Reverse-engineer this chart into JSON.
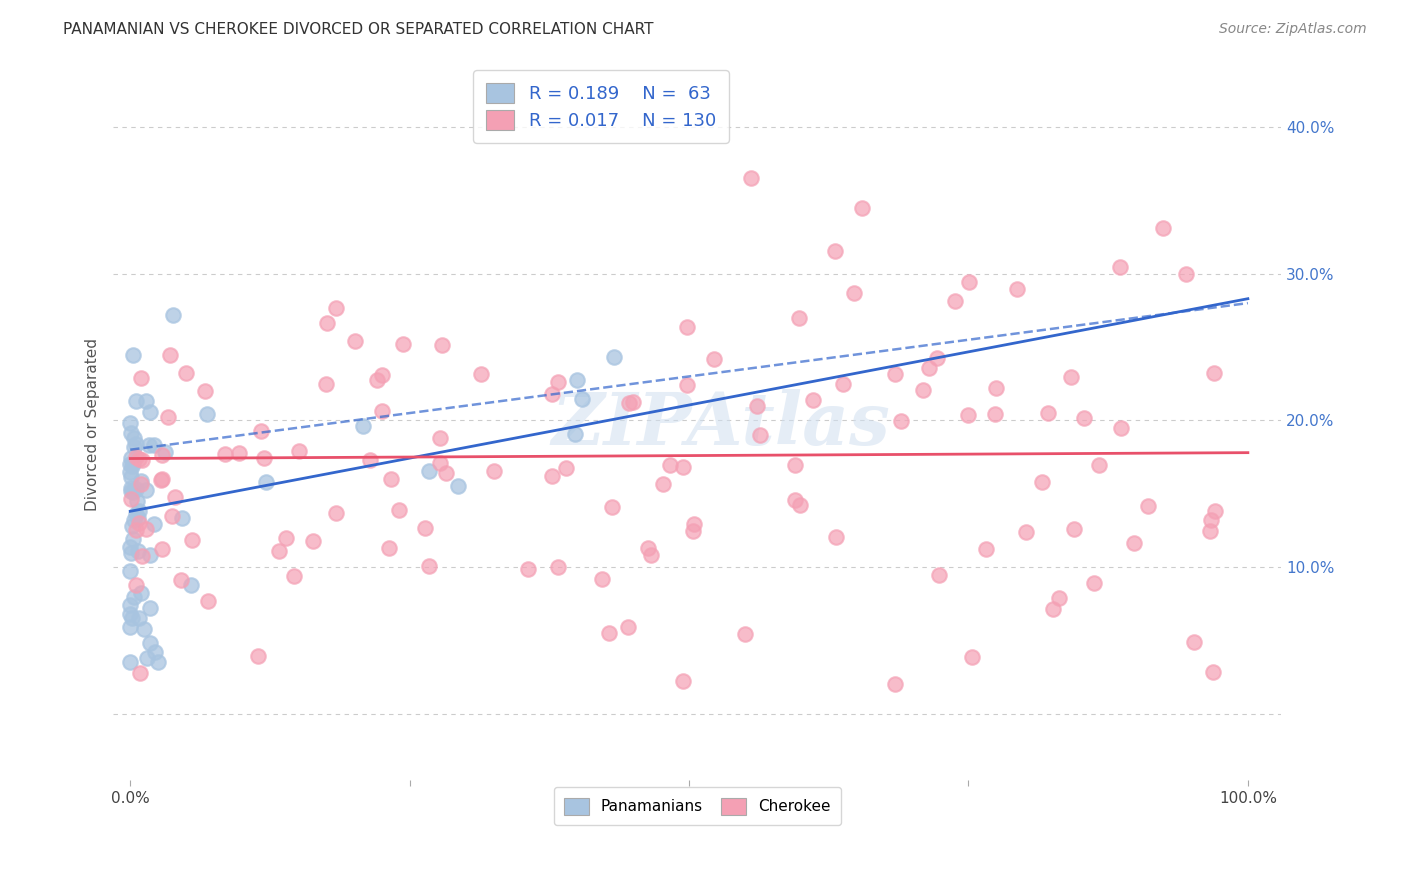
{
  "title": "PANAMANIAN VS CHEROKEE DIVORCED OR SEPARATED CORRELATION CHART",
  "source": "Source: ZipAtlas.com",
  "ylabel": "Divorced or Separated",
  "legend_label1": "Panamanians",
  "legend_label2": "Cherokee",
  "R1": 0.189,
  "N1": 63,
  "R2": 0.017,
  "N2": 130,
  "color1": "#a8c4e0",
  "color2": "#f4a0b4",
  "trendline1_color": "#3366cc",
  "trendline2_color": "#e8506a",
  "watermark": "ZIPAtlas",
  "background_color": "#ffffff",
  "grid_color": "#cccccc",
  "title_fontsize": 11,
  "source_fontsize": 10,
  "ytick_color": "#4477cc"
}
